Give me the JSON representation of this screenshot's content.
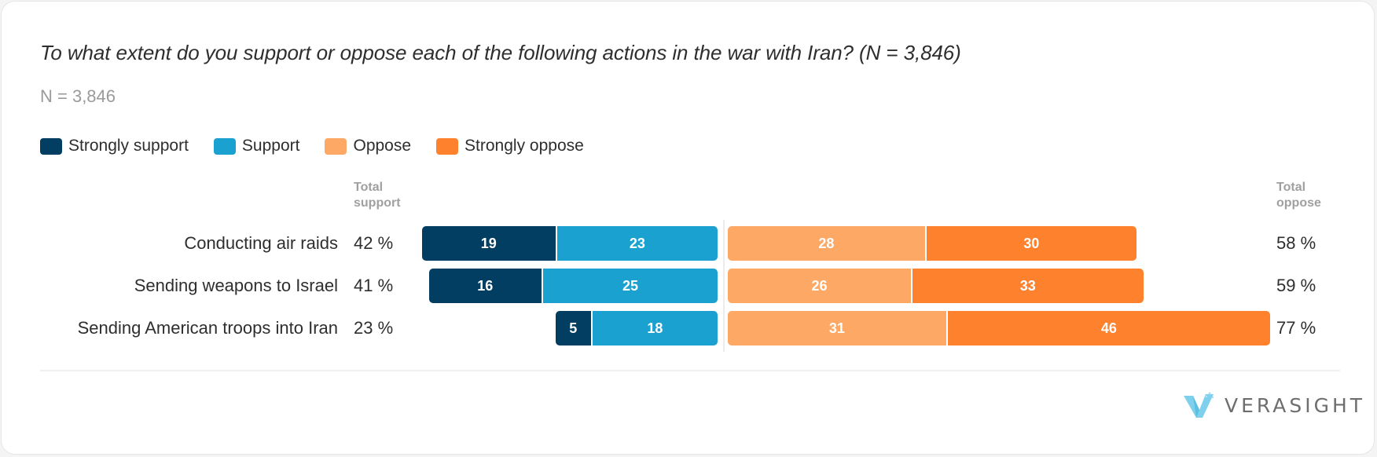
{
  "colors": {
    "strongly_support": "#023e62",
    "support": "#1ba1cf",
    "oppose": "#fea865",
    "strongly_oppose": "#fe812e"
  },
  "brand": {
    "name": "VERASIGHT",
    "logo_icon": "verasight-v-logo-icon"
  },
  "chart_data": {
    "type": "bar",
    "orientation": "horizontal-diverging-stacked",
    "title": "To what extent do you support or oppose each of the following actions in the war with Iran? (N = 3,846)",
    "subtitle": "N = 3,846",
    "legend": [
      "Strongly support",
      "Support",
      "Oppose",
      "Strongly oppose"
    ],
    "legend_placement": "top-left",
    "column_headers": {
      "total_support": "Total support",
      "total_oppose": "Total oppose"
    },
    "categories": [
      "Conducting air raids",
      "Sending weapons to Israel",
      "Sending American troops into Iran"
    ],
    "series": [
      {
        "name": "Strongly support",
        "values": [
          19,
          16,
          5
        ]
      },
      {
        "name": "Support",
        "values": [
          23,
          25,
          18
        ]
      },
      {
        "name": "Oppose",
        "values": [
          28,
          26,
          31
        ]
      },
      {
        "name": "Strongly oppose",
        "values": [
          30,
          33,
          46
        ]
      }
    ],
    "total_support": [
      "42 %",
      "41 %",
      "23 %"
    ],
    "total_oppose": [
      "58 %",
      "59 %",
      "77 %"
    ],
    "unit": "%"
  }
}
